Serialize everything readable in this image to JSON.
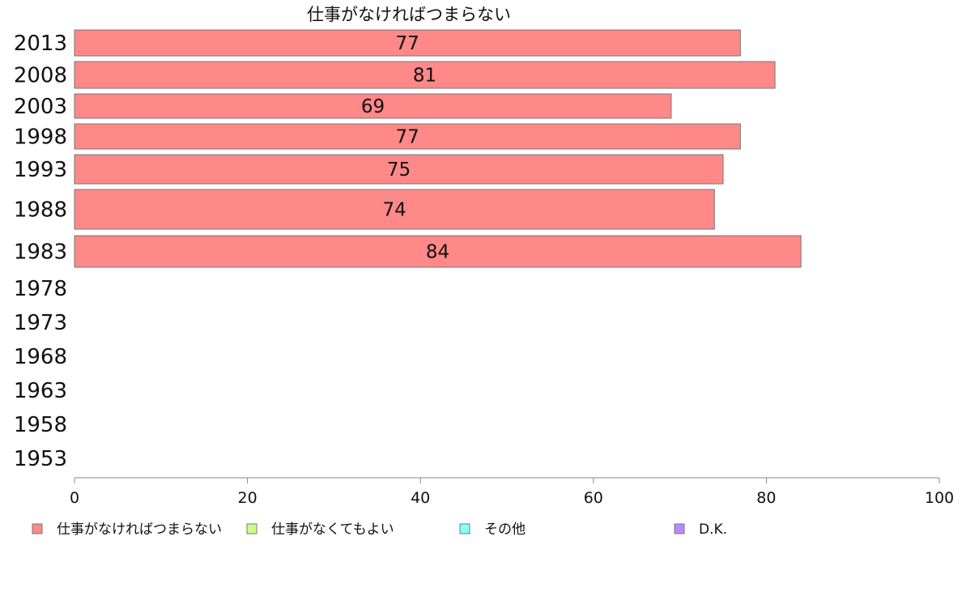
{
  "chart_data": {
    "type": "bar",
    "orientation": "horizontal",
    "title": "仕事がなければつまらない",
    "categories": [
      "2013",
      "2008",
      "2003",
      "1998",
      "1993",
      "1988",
      "1983",
      "1978",
      "1973",
      "1968",
      "1963",
      "1958",
      "1953"
    ],
    "series": [
      {
        "name": "仕事がなければつまらない",
        "color": "#ff8888",
        "values": [
          77,
          81,
          69,
          77,
          75,
          74,
          84,
          null,
          null,
          null,
          null,
          null,
          null
        ]
      },
      {
        "name": "仕事がなくてもよい",
        "color": "#ccff88",
        "values": [
          null,
          null,
          null,
          null,
          null,
          null,
          null,
          null,
          null,
          null,
          null,
          null,
          null
        ]
      },
      {
        "name": "その他",
        "color": "#88ffff",
        "values": [
          null,
          null,
          null,
          null,
          null,
          null,
          null,
          null,
          null,
          null,
          null,
          null,
          null
        ]
      },
      {
        "name": "D.K.",
        "color": "#bb88ff",
        "values": [
          null,
          null,
          null,
          null,
          null,
          null,
          null,
          null,
          null,
          null,
          null,
          null,
          null
        ]
      }
    ],
    "xlim": [
      0,
      100
    ],
    "xticks": [
      0,
      20,
      40,
      60,
      80,
      100
    ],
    "xlabel": "",
    "ylabel": "",
    "grid": false,
    "legend_position": "bottom"
  }
}
